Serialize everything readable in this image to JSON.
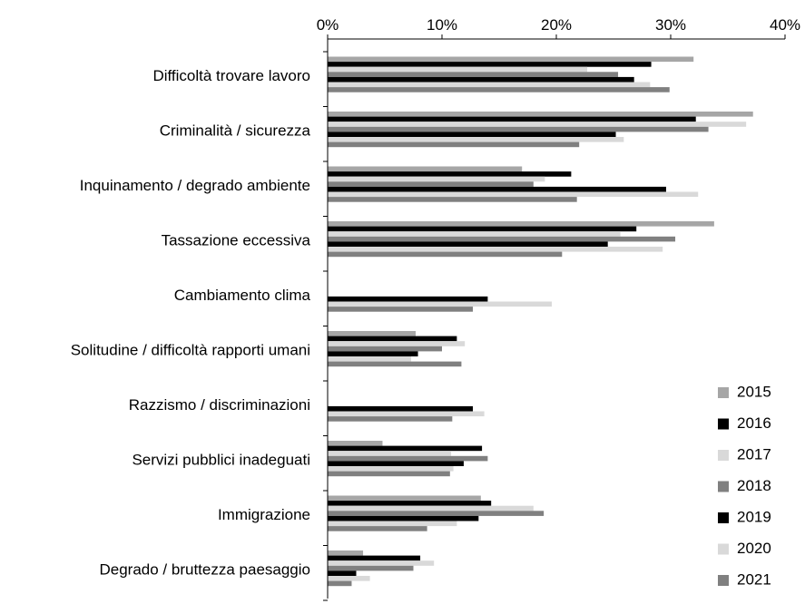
{
  "chart_data": {
    "type": "bar",
    "orientation": "horizontal",
    "categories": [
      "Difficoltà trovare lavoro",
      "Criminalità / sicurezza",
      "Inquinamento / degrado ambiente",
      "Tassazione eccessiva",
      "Cambiamento clima",
      "Solitudine / difficoltà rapporti umani",
      "Razzismo / discriminazioni",
      "Servizi pubblici inadeguati",
      "Immigrazione",
      "Degrado / bruttezza paesaggio"
    ],
    "series": [
      {
        "name": "2015",
        "color": "#a6a6a6",
        "values": [
          32.0,
          37.2,
          17.0,
          33.8,
          null,
          7.7,
          null,
          4.8,
          13.4,
          3.1
        ]
      },
      {
        "name": "2016",
        "color": "#000000",
        "values": [
          28.3,
          32.2,
          21.3,
          27.0,
          null,
          11.3,
          null,
          13.5,
          14.3,
          8.1
        ]
      },
      {
        "name": "2017",
        "color": "#d9d9d9",
        "values": [
          22.7,
          36.6,
          19.0,
          25.6,
          null,
          12.0,
          null,
          10.8,
          18.0,
          9.3
        ]
      },
      {
        "name": "2018",
        "color": "#808080",
        "values": [
          25.4,
          33.3,
          18.0,
          30.4,
          null,
          10.0,
          null,
          14.0,
          18.9,
          7.5
        ]
      },
      {
        "name": "2019",
        "color": "#000000",
        "values": [
          26.8,
          25.2,
          29.6,
          24.5,
          14.0,
          7.9,
          12.7,
          11.9,
          13.2,
          2.5
        ]
      },
      {
        "name": "2020",
        "color": "#d9d9d9",
        "values": [
          28.2,
          25.9,
          32.4,
          29.3,
          19.6,
          7.3,
          13.7,
          11.0,
          11.3,
          3.7
        ]
      },
      {
        "name": "2021",
        "color": "#808080",
        "values": [
          29.9,
          22.0,
          21.8,
          20.5,
          12.7,
          11.7,
          10.9,
          10.7,
          8.7,
          2.1
        ]
      }
    ],
    "xlim": [
      0,
      40
    ],
    "xticks": [
      "0%",
      "10%",
      "20%",
      "30%",
      "40%"
    ],
    "xaxis_position": "top",
    "grid": false,
    "legend_position": "bottom-right"
  }
}
